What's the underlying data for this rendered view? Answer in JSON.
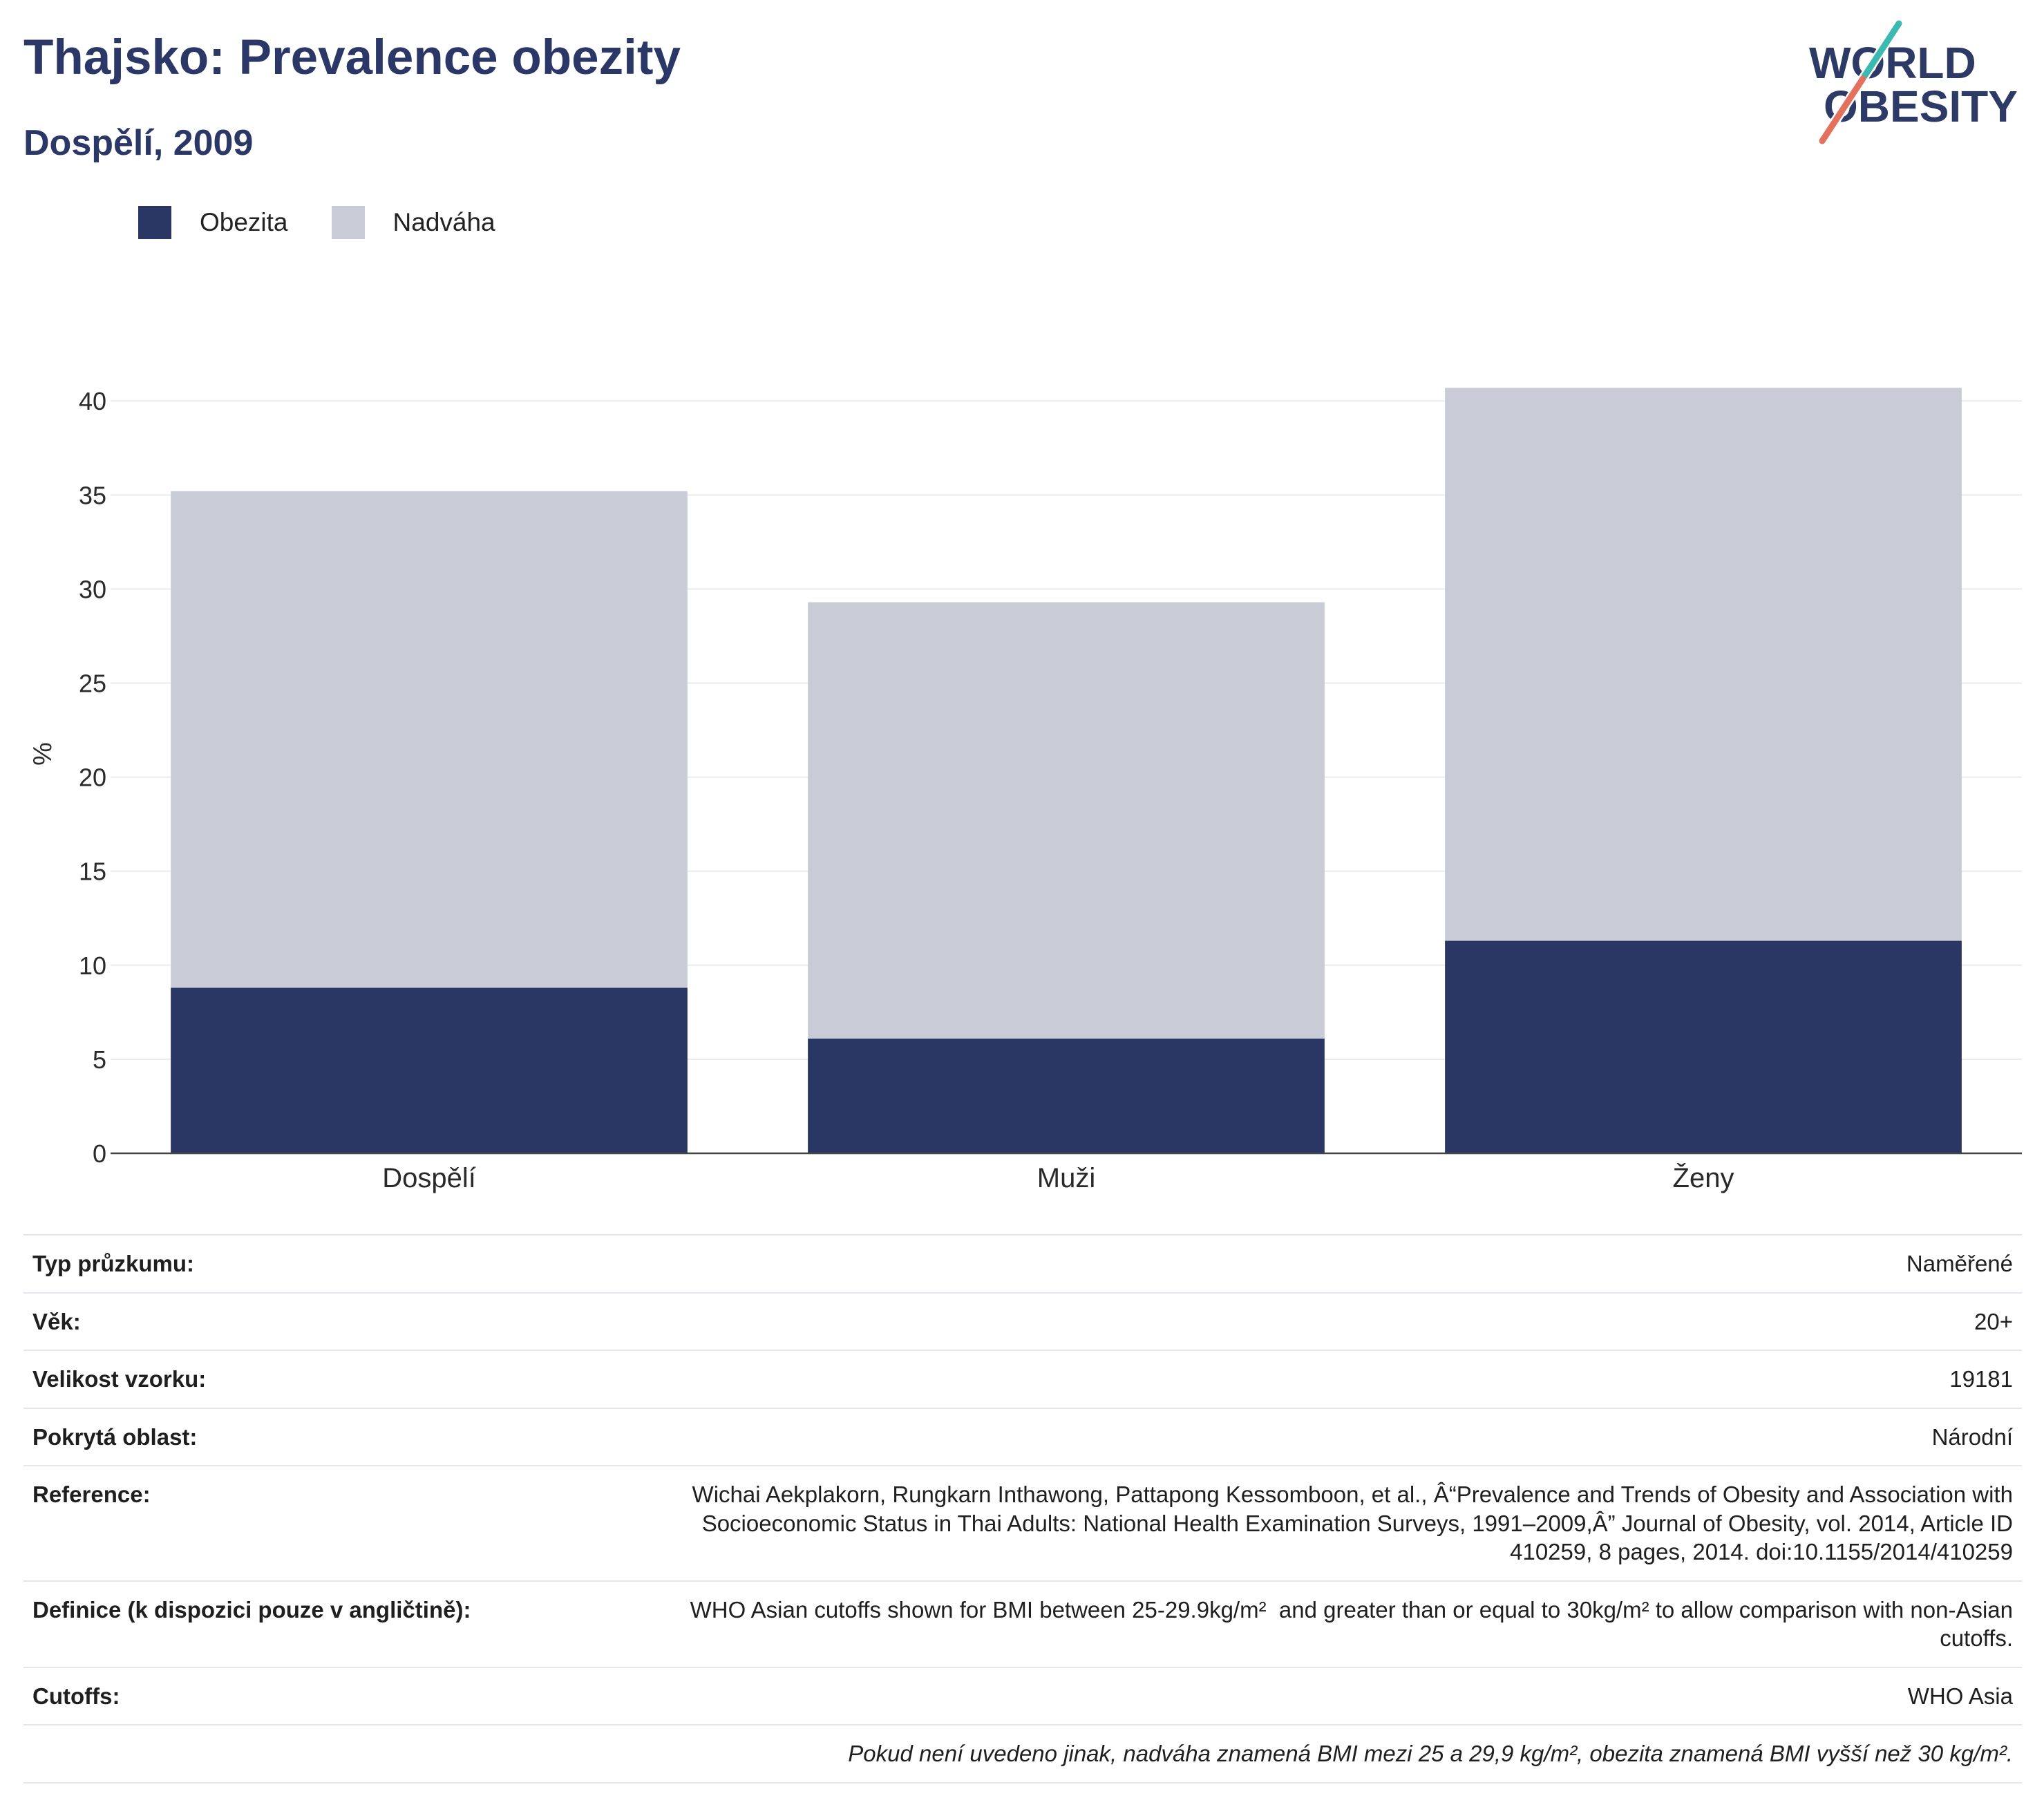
{
  "theme": {
    "title_color": "#2b3867"
  },
  "logo": {
    "line1": "WORLD",
    "line2": "OBESITY",
    "text_color": "#2d3a66",
    "slash_top_color": "#3cbab2",
    "slash_bottom_color": "#e4715d"
  },
  "chart_data": {
    "type": "bar",
    "stacked": true,
    "title": "Thajsko: Prevalence obezity",
    "subtitle": "Dospělí, 2009",
    "categories": [
      "Dospělí",
      "Muži",
      "Ženy"
    ],
    "series": [
      {
        "name": "Obezita",
        "color": "#2a3765",
        "values": [
          8.8,
          6.1,
          11.3
        ]
      },
      {
        "name": "Nadváha",
        "color": "#c9cbd7",
        "values": [
          26.4,
          23.2,
          29.4
        ]
      }
    ],
    "ylabel": "%",
    "ylim": [
      0,
      42.8
    ],
    "yticks": [
      0,
      5,
      10,
      15,
      20,
      25,
      30,
      35,
      40
    ],
    "grid": true,
    "legend": "top-left"
  },
  "info_table": {
    "rows": [
      {
        "label": "Typ průzkumu:",
        "value": "Naměřené"
      },
      {
        "label": "Věk:",
        "value": "20+"
      },
      {
        "label": "Velikost vzorku:",
        "value": "19181"
      },
      {
        "label": "Pokrytá oblast:",
        "value": "Národní"
      },
      {
        "label": "Reference:",
        "value": "Wichai Aekplakorn, Rungkarn Inthawong, Pattapong Kessomboon, et al., Â“Prevalence and Trends of Obesity and Association with Socioeconomic Status in Thai Adults: National Health Examination Surveys, 1991–2009,Â” Journal of Obesity, vol. 2014, Article ID 410259, 8 pages, 2014. doi:10.1155/2014/410259"
      },
      {
        "label": "Definice (k dispozici pouze v angličtině):",
        "value": "WHO Asian cutoffs shown for BMI between 25-29.9kg/m²  and greater than or equal to 30kg/m² to allow comparison with non-Asian cutoffs."
      },
      {
        "label": "Cutoffs:",
        "value": "WHO Asia"
      }
    ],
    "note": "Pokud není uvedeno jinak, nadváha znamená BMI mezi 25 a 29,9 kg/m², obezita znamená BMI vyšší než 30 kg/m²."
  }
}
